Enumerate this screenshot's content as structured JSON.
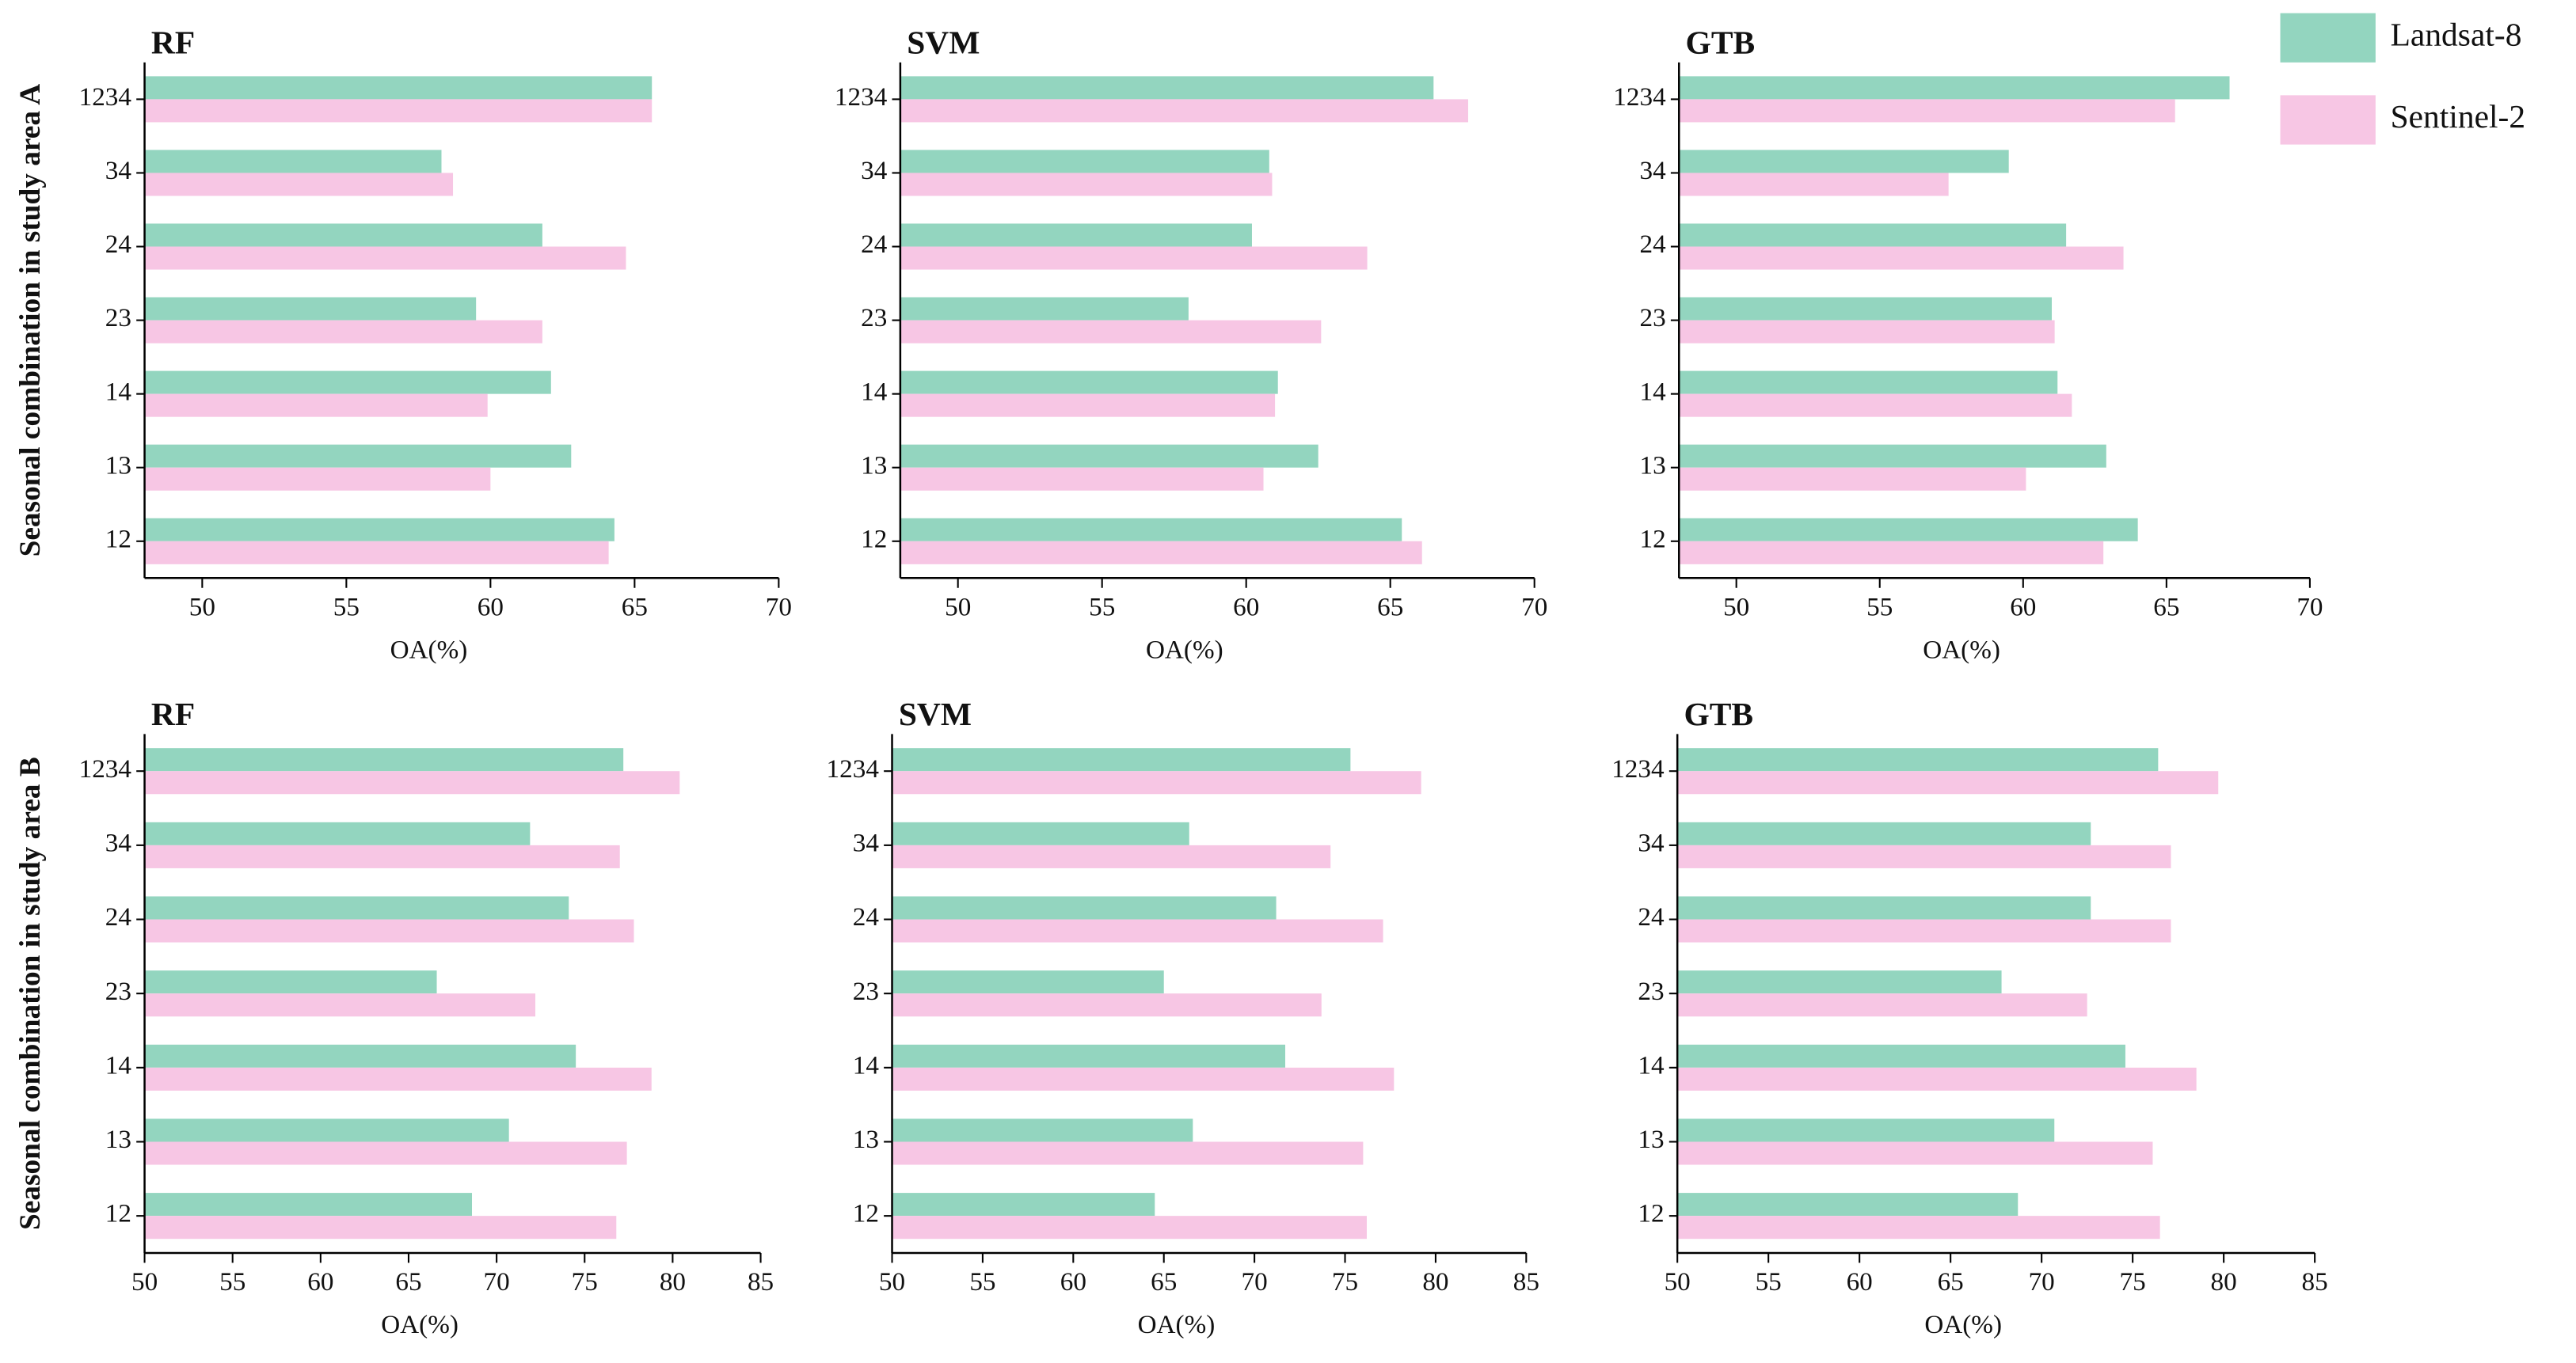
{
  "chart_data": [
    {
      "type": "bar",
      "orientation": "horizontal",
      "title": "RF",
      "xlabel": "OA(%)",
      "ylabel": "Seasonal combination in study area A",
      "categories": [
        "1234",
        "34",
        "24",
        "23",
        "14",
        "13",
        "12"
      ],
      "series": [
        {
          "name": "Landsat-8",
          "color": "#93d5bf",
          "values": [
            65.6,
            58.3,
            61.8,
            59.5,
            62.1,
            62.8,
            64.3
          ]
        },
        {
          "name": "Sentinel-2",
          "color": "#f7c6e4",
          "values": [
            65.6,
            58.7,
            64.7,
            61.8,
            59.9,
            60.0,
            64.1
          ]
        }
      ],
      "xlim": [
        48,
        70
      ],
      "xticks": [
        50,
        55,
        60,
        65,
        70
      ]
    },
    {
      "type": "bar",
      "orientation": "horizontal",
      "title": "SVM",
      "xlabel": "OA(%)",
      "categories": [
        "1234",
        "34",
        "24",
        "23",
        "14",
        "13",
        "12"
      ],
      "series": [
        {
          "name": "Landsat-8",
          "color": "#93d5bf",
          "values": [
            66.5,
            60.8,
            60.2,
            58.0,
            61.1,
            62.5,
            65.4
          ]
        },
        {
          "name": "Sentinel-2",
          "color": "#f7c6e4",
          "values": [
            67.7,
            60.9,
            64.2,
            62.6,
            61.0,
            60.6,
            66.1
          ]
        }
      ],
      "xlim": [
        48,
        70
      ],
      "xticks": [
        50,
        55,
        60,
        65,
        70
      ]
    },
    {
      "type": "bar",
      "orientation": "horizontal",
      "title": "GTB",
      "xlabel": "OA(%)",
      "categories": [
        "1234",
        "34",
        "24",
        "23",
        "14",
        "13",
        "12"
      ],
      "series": [
        {
          "name": "Landsat-8",
          "color": "#93d5bf",
          "values": [
            67.2,
            59.5,
            61.5,
            61.0,
            61.2,
            62.9,
            64.0
          ]
        },
        {
          "name": "Sentinel-2",
          "color": "#f7c6e4",
          "values": [
            65.3,
            57.4,
            63.5,
            61.1,
            61.7,
            60.1,
            62.8
          ]
        }
      ],
      "xlim": [
        48,
        70
      ],
      "xticks": [
        50,
        55,
        60,
        65,
        70
      ]
    },
    {
      "type": "bar",
      "orientation": "horizontal",
      "title": "RF",
      "xlabel": "OA(%)",
      "ylabel": "Seasonal combination in study area B",
      "categories": [
        "1234",
        "34",
        "24",
        "23",
        "14",
        "13",
        "12"
      ],
      "series": [
        {
          "name": "Landsat-8",
          "color": "#93d5bf",
          "values": [
            77.2,
            71.9,
            74.1,
            66.6,
            74.5,
            70.7,
            68.6
          ]
        },
        {
          "name": "Sentinel-2",
          "color": "#f7c6e4",
          "values": [
            80.4,
            77.0,
            77.8,
            72.2,
            78.8,
            77.4,
            76.8
          ]
        }
      ],
      "xlim": [
        50,
        85
      ],
      "xticks": [
        50,
        55,
        60,
        65,
        70,
        75,
        80,
        85
      ]
    },
    {
      "type": "bar",
      "orientation": "horizontal",
      "title": "SVM",
      "xlabel": "OA(%)",
      "categories": [
        "1234",
        "34",
        "24",
        "23",
        "14",
        "13",
        "12"
      ],
      "series": [
        {
          "name": "Landsat-8",
          "color": "#93d5bf",
          "values": [
            75.3,
            66.4,
            71.2,
            65.0,
            71.7,
            66.6,
            64.5
          ]
        },
        {
          "name": "Sentinel-2",
          "color": "#f7c6e4",
          "values": [
            79.2,
            74.2,
            77.1,
            73.7,
            77.7,
            76.0,
            76.2
          ]
        }
      ],
      "xlim": [
        50,
        85
      ],
      "xticks": [
        50,
        55,
        60,
        65,
        70,
        75,
        80,
        85
      ]
    },
    {
      "type": "bar",
      "orientation": "horizontal",
      "title": "GTB",
      "xlabel": "OA(%)",
      "categories": [
        "1234",
        "34",
        "24",
        "23",
        "14",
        "13",
        "12"
      ],
      "series": [
        {
          "name": "Landsat-8",
          "color": "#93d5bf",
          "values": [
            76.4,
            72.7,
            72.7,
            67.8,
            74.6,
            70.7,
            68.7
          ]
        },
        {
          "name": "Sentinel-2",
          "color": "#f7c6e4",
          "values": [
            79.7,
            77.1,
            77.1,
            72.5,
            78.5,
            76.1,
            76.5
          ]
        }
      ],
      "xlim": [
        50,
        85
      ],
      "xticks": [
        50,
        55,
        60,
        65,
        70,
        75,
        80,
        85
      ]
    }
  ]
}
